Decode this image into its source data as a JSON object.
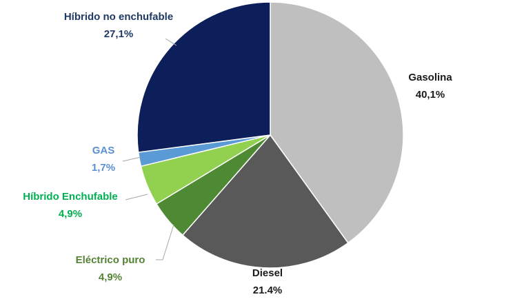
{
  "chart_data": {
    "type": "pie",
    "categories": [
      "Gasolina",
      "Diesel",
      "Eléctrico puro",
      "Híbrido Enchufable",
      "GAS",
      "Híbrido no enchufable"
    ],
    "values": [
      40.1,
      21.4,
      4.9,
      4.9,
      1.7,
      27.1
    ],
    "value_labels": [
      "40,1%",
      "21.4%",
      "4,9%",
      "4,9%",
      "1,7%",
      "27,1%"
    ],
    "colors": [
      "#bfbfbf",
      "#595959",
      "#4e8a34",
      "#92d050",
      "#5b9bd5",
      "#0c1f5b"
    ],
    "label_colors": [
      "#1a1a1a",
      "#1a1a1a",
      "#548235",
      "#00b050",
      "#5b8fd0",
      "#1f3864"
    ]
  }
}
